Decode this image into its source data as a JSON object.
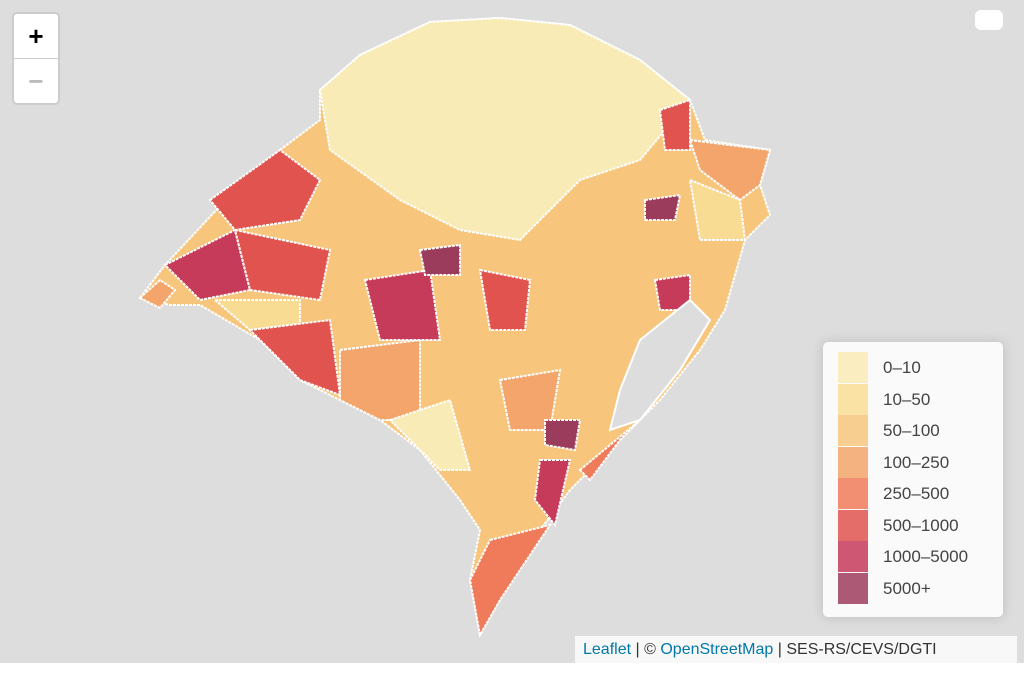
{
  "controls": {
    "zoom_in": "+",
    "zoom_out": "−"
  },
  "legend": {
    "items": [
      {
        "label": "0–10",
        "color": "#f9ebb6"
      },
      {
        "label": "10–50",
        "color": "#f9dc94"
      },
      {
        "label": "50–100",
        "color": "#f7c67c"
      },
      {
        "label": "100–250",
        "color": "#f3a56b"
      },
      {
        "label": "250–500",
        "color": "#f07b5a"
      },
      {
        "label": "500–1000",
        "color": "#e0534f"
      },
      {
        "label": "1000–5000",
        "color": "#c63b5a"
      },
      {
        "label": "5000+",
        "color": "#9c3c5c"
      }
    ]
  },
  "attribution": {
    "leaflet": "Leaflet",
    "separator": "| ©",
    "osm": "OpenStreetMap",
    "source": "| SES-RS/CEVS/DGTI"
  }
}
